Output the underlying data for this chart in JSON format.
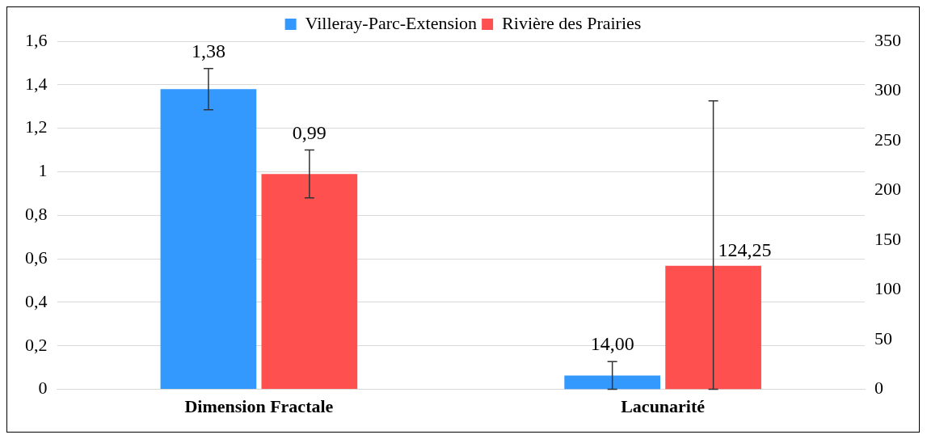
{
  "chart_data": {
    "type": "bar",
    "categories": [
      "Dimension Fractale",
      "Lacunarité"
    ],
    "series": [
      {
        "name": "Villeray-Parc-Extension",
        "color": "#3399ff",
        "values": [
          1.38,
          null
        ],
        "errors": [
          [
            1.285,
            1.475
          ],
          null
        ],
        "value_labels": [
          "1,38",
          null
        ]
      },
      {
        "name": "Rivière des Prairies",
        "color": "#ff5050",
        "values": [
          0.99,
          null
        ],
        "errors": [
          [
            0.88,
            1.1
          ],
          null
        ],
        "value_labels": [
          "0,99",
          null
        ]
      },
      {
        "color": "#3399ff",
        "axis": "y2",
        "values": [
          null,
          14.0
        ],
        "errors": [
          null,
          [
            0,
            28
          ]
        ],
        "value_labels": [
          null,
          "14,00"
        ]
      },
      {
        "color": "#ff5050",
        "axis": "y2",
        "values": [
          null,
          124.25
        ],
        "errors": [
          null,
          [
            0,
            290
          ]
        ],
        "value_labels": [
          null,
          "124,25"
        ]
      }
    ],
    "ylim": [
      0,
      1.6
    ],
    "yticks": [
      0,
      {
        "value": 0.2,
        "label": "0,2"
      },
      {
        "value": 0.4,
        "label": "0,4"
      },
      {
        "value": 0.6,
        "label": "0,6"
      },
      {
        "value": 0.8,
        "label": "0,8"
      },
      1,
      {
        "value": 1.2,
        "label": "1,2"
      },
      {
        "value": 1.4,
        "label": "1,4"
      },
      {
        "value": 1.6,
        "label": "1,6"
      }
    ],
    "y2lim": [
      0,
      350
    ],
    "y2ticks": [
      0,
      50,
      100,
      150,
      200,
      250,
      300,
      350
    ],
    "grid": "y",
    "legend": "top"
  }
}
